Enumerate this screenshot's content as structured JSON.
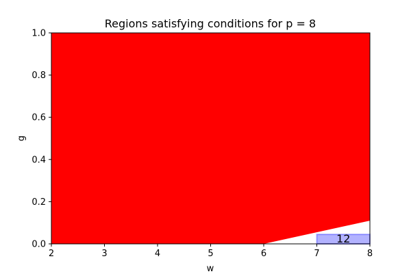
{
  "chart_data": {
    "type": "area",
    "title": "Regions satisfying conditions for p = 8",
    "xlabel": "w",
    "ylabel": "g",
    "xlim": [
      2,
      8
    ],
    "ylim": [
      0,
      1.0
    ],
    "x_ticks": [
      "2",
      "3",
      "4",
      "5",
      "6",
      "7",
      "8"
    ],
    "y_ticks": [
      "0.0",
      "0.2",
      "0.4",
      "0.6",
      "0.8",
      "1.0"
    ],
    "grid": false,
    "regions": [
      {
        "shape": "polygon",
        "color": "#ff0000",
        "points": [
          [
            2,
            0
          ],
          [
            6,
            0
          ],
          [
            8,
            0.11
          ],
          [
            8,
            1.0
          ],
          [
            2,
            1.0
          ]
        ]
      },
      {
        "shape": "rectangle",
        "color": "#0000ff",
        "alpha": 0.3,
        "x_range": [
          7,
          8
        ],
        "y_range": [
          0,
          0.045
        ],
        "label": "12"
      }
    ]
  }
}
